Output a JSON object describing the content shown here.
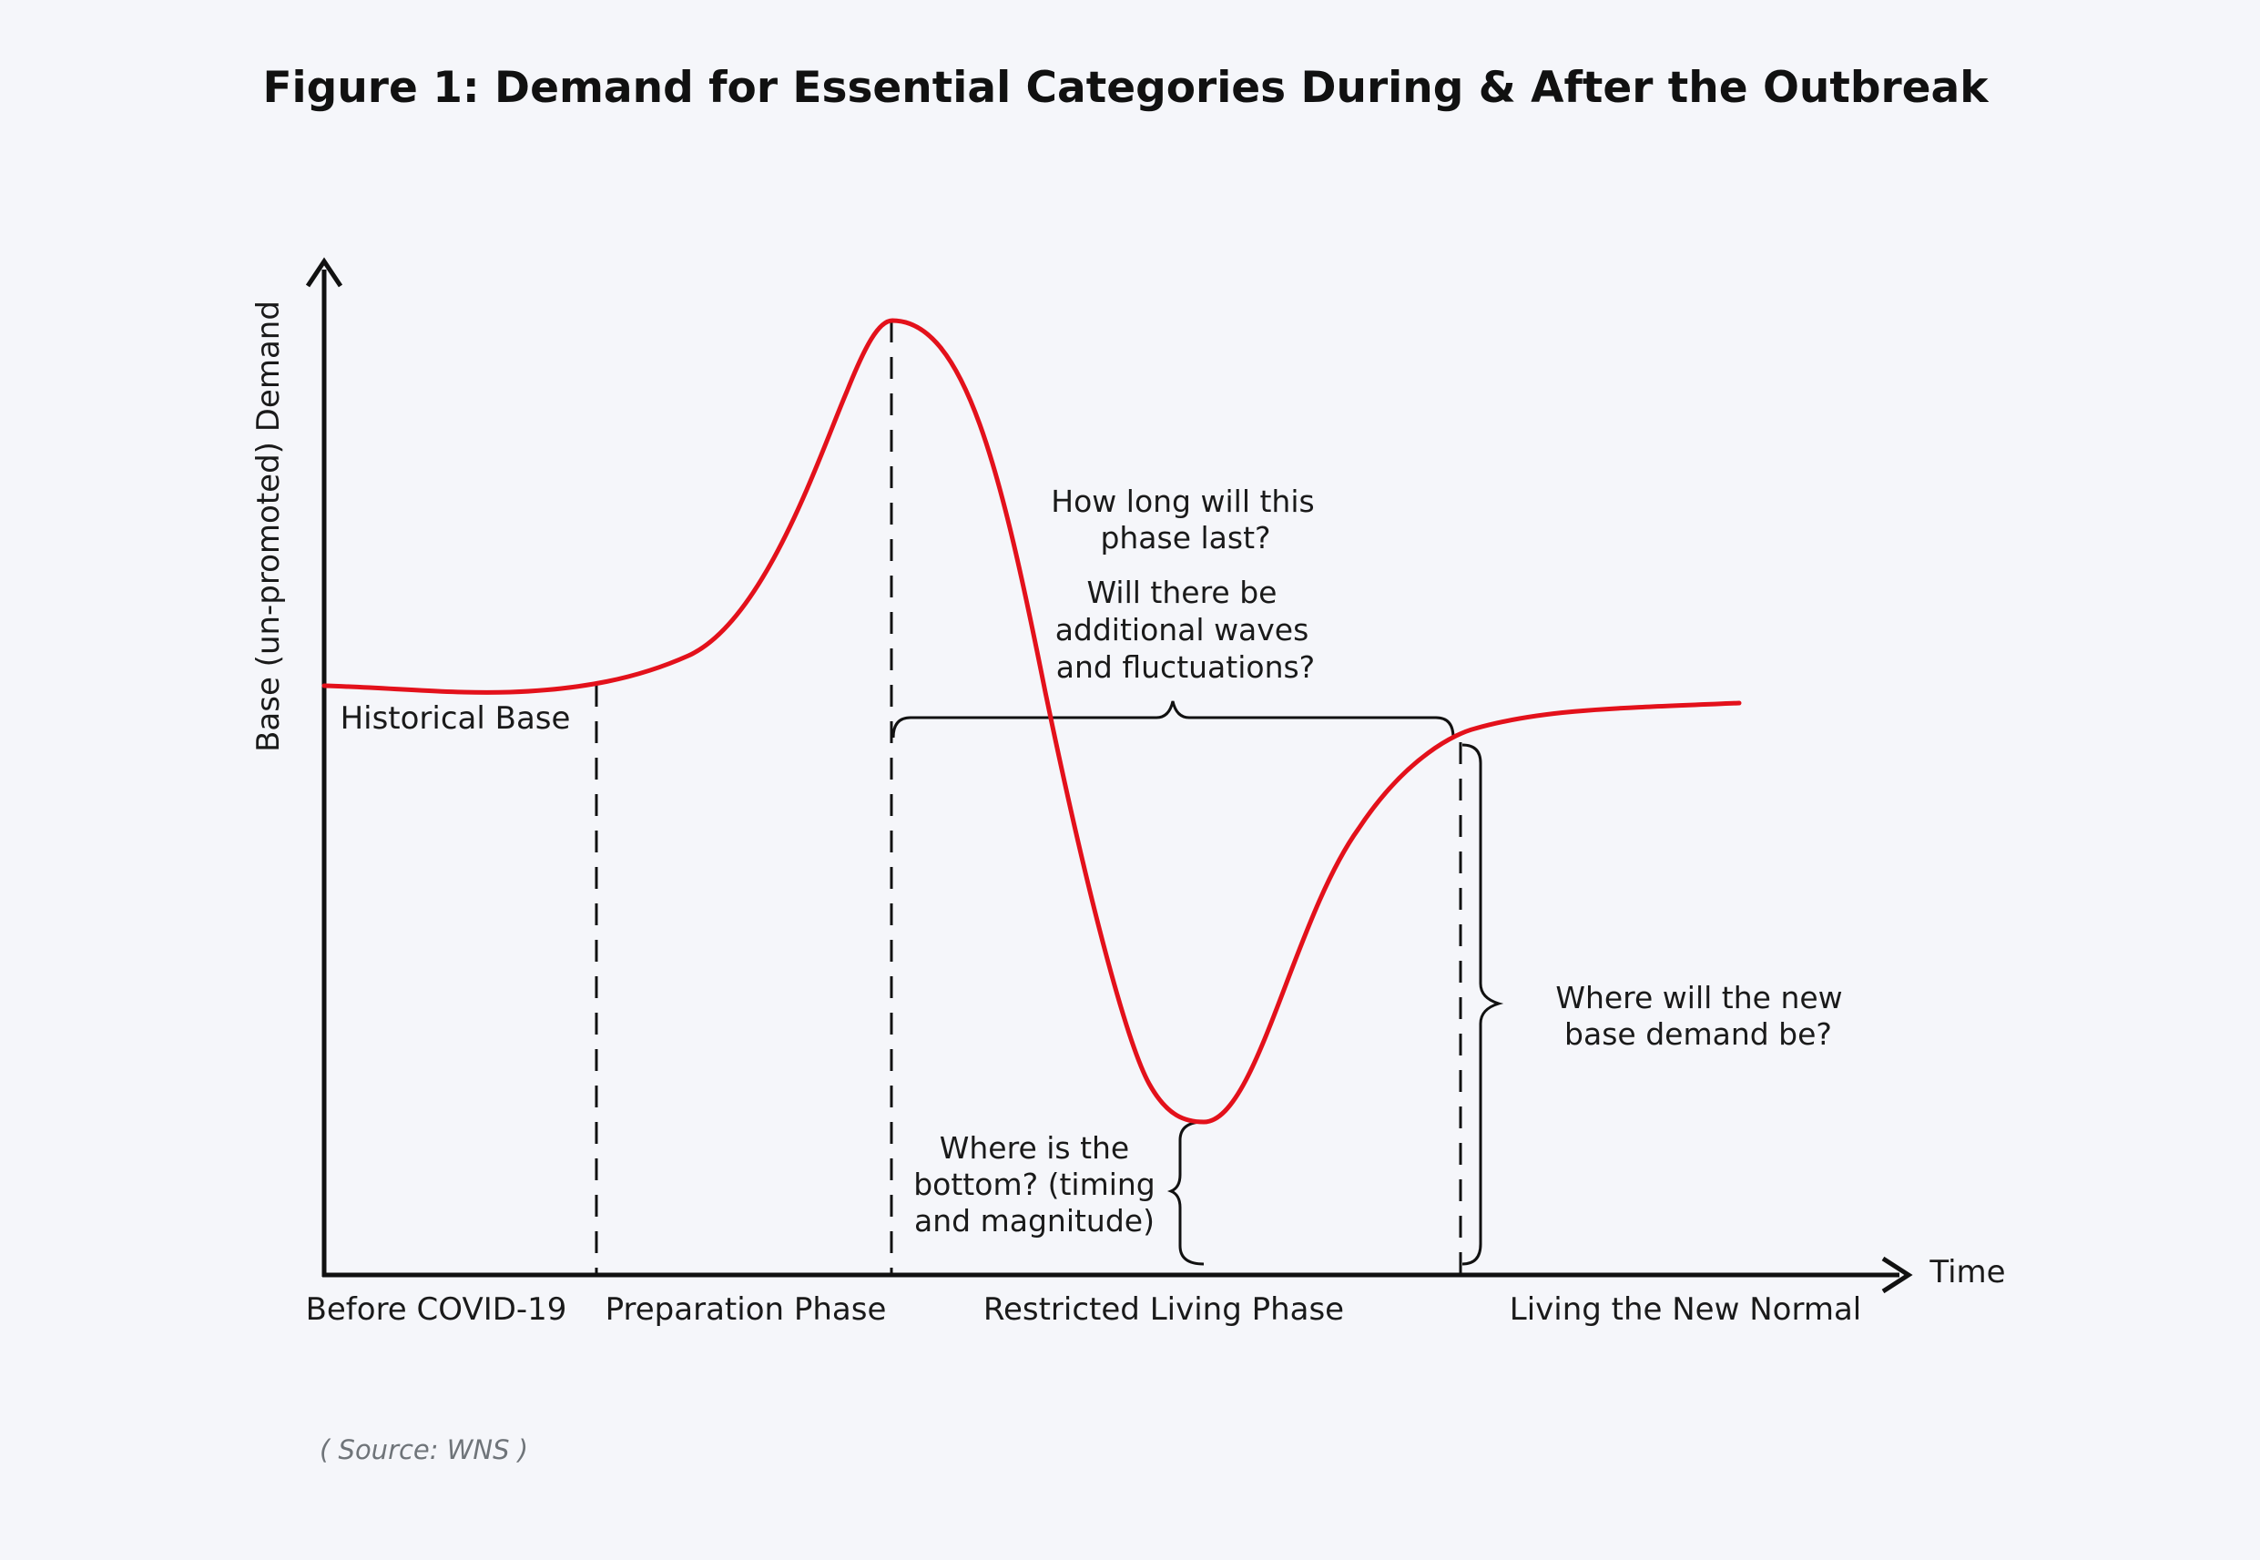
{
  "title": "Figure 1: Demand for Essential Categories During & After the Outbreak",
  "y_axis_label": "Base (un-promoted) Demand",
  "x_axis_label": "Time",
  "historical_base_label": "Historical Base",
  "phases": [
    "Before COVID-19",
    "Preparation Phase",
    "Restricted Living Phase",
    "Living the New Normal"
  ],
  "annotations": {
    "duration": [
      "How long will this",
      "phase last?"
    ],
    "waves": [
      "Will there be",
      "additional waves",
      "and fluctuations?"
    ],
    "bottom": [
      "Where is the",
      "bottom? (timing",
      "and magnitude)"
    ],
    "new_base": [
      "Where will the new",
      "base demand be?"
    ]
  },
  "source": "( Source: WNS )",
  "colors": {
    "curve": "#e3111b",
    "axis": "#111111",
    "text": "#1a1a1a",
    "background": "#f5f6fa",
    "source_text": "#6f7479"
  }
}
